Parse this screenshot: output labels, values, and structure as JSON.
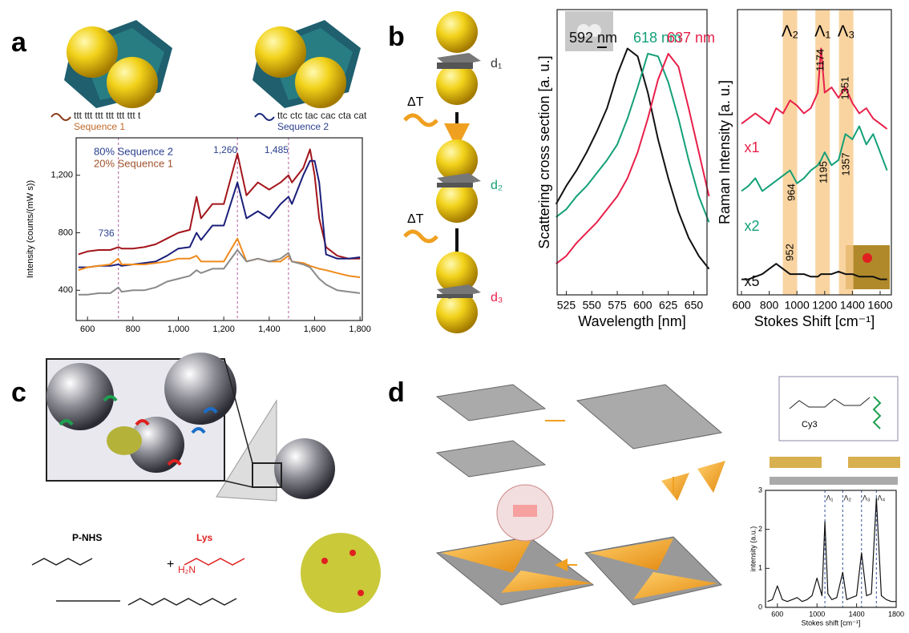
{
  "figure": {
    "panels": [
      "a",
      "b",
      "c",
      "d"
    ],
    "a": {
      "strand1": "ttt ttt ttt ttt ttt ttt t",
      "label1": "Sequence 1",
      "strand2": "ttc ctc tac cac cta cat",
      "label2": "Sequence 2"
    },
    "b": {
      "gaps": [
        "d₁",
        "d₂",
        "d₃"
      ],
      "heat": [
        "ΔT",
        "ΔT"
      ]
    },
    "c": {
      "reagent1": "P-NHS",
      "reagent2": "Lys",
      "plus": "+",
      "amine": "H₂N"
    },
    "d": {
      "dye": "Cy3"
    }
  },
  "chart_data": [
    {
      "type": "line",
      "ylabel": "Intensity (counts/(mW s))",
      "x": [
        560,
        600,
        650,
        700,
        736,
        750,
        800,
        850,
        900,
        950,
        1000,
        1050,
        1080,
        1100,
        1150,
        1200,
        1260,
        1300,
        1350,
        1400,
        1450,
        1485,
        1500,
        1550,
        1580,
        1600,
        1620,
        1650,
        1700,
        1750,
        1800
      ],
      "series": [
        {
          "color": "#a3151b",
          "values": [
            650,
            670,
            680,
            680,
            700,
            690,
            690,
            700,
            720,
            760,
            800,
            820,
            1050,
            900,
            1000,
            1000,
            1350,
            1060,
            1150,
            1100,
            1150,
            1200,
            1150,
            1250,
            1380,
            1200,
            900,
            700,
            640,
            620,
            620
          ]
        },
        {
          "color": "#1b1f7a",
          "values": [
            560,
            560,
            570,
            570,
            580,
            570,
            580,
            590,
            600,
            640,
            690,
            700,
            800,
            750,
            850,
            850,
            1150,
            900,
            950,
            900,
            1000,
            1050,
            1000,
            1200,
            1300,
            1300,
            1150,
            650,
            620,
            620,
            630
          ]
        },
        {
          "color": "#f08a1c",
          "values": [
            540,
            560,
            570,
            580,
            620,
            580,
            580,
            580,
            590,
            600,
            620,
            620,
            640,
            600,
            600,
            600,
            760,
            600,
            620,
            600,
            600,
            640,
            600,
            590,
            570,
            560,
            550,
            540,
            520,
            500,
            490
          ]
        },
        {
          "color": "#8a8a8a",
          "values": [
            370,
            370,
            380,
            380,
            420,
            390,
            400,
            400,
            420,
            460,
            480,
            500,
            540,
            520,
            550,
            550,
            680,
            600,
            620,
            600,
            620,
            660,
            600,
            580,
            560,
            520,
            480,
            440,
            400,
            390,
            380
          ]
        }
      ],
      "annotations": [
        {
          "text": "80% Sequence 2",
          "color": "#2a3f8f"
        },
        {
          "text": "20% Sequence 1",
          "color": "#a0522d"
        }
      ],
      "markers": [
        736,
        {
          "value": 1260,
          "label": "1,260"
        },
        {
          "value": 1485,
          "label": "1,485"
        }
      ],
      "xlim": [
        550,
        1810
      ],
      "ylim": [
        190,
        1460
      ],
      "xticks": [
        600,
        800,
        {
          "value": 1000,
          "label": "1,000"
        },
        {
          "value": 1200,
          "label": "1,200"
        },
        {
          "value": 1400,
          "label": "1,400"
        },
        {
          "value": 1600,
          "label": "1,600"
        },
        {
          "value": 1800,
          "label": "1,800"
        }
      ],
      "yticks": [
        400,
        800,
        {
          "value": 1200,
          "label": "1,200"
        }
      ]
    },
    {
      "type": "line",
      "xlabel": "Wavelength [nm]",
      "ylabel": "Scattering cross section [a. u.]",
      "x": [
        515,
        525,
        535,
        545,
        555,
        565,
        575,
        585,
        595,
        605,
        615,
        625,
        635,
        645,
        655,
        665
      ],
      "series": [
        {
          "name": "592 nm",
          "color": "#111111",
          "values": [
            0.35,
            0.42,
            0.48,
            0.55,
            0.63,
            0.72,
            0.85,
            0.95,
            0.92,
            0.78,
            0.6,
            0.45,
            0.32,
            0.22,
            0.15,
            0.1
          ]
        },
        {
          "name": "618 nm",
          "color": "#14a078",
          "values": [
            0.3,
            0.33,
            0.38,
            0.42,
            0.47,
            0.52,
            0.58,
            0.68,
            0.8,
            0.93,
            0.92,
            0.82,
            0.68,
            0.52,
            0.38,
            0.28
          ]
        },
        {
          "name": "637 nm",
          "color": "#e8204a",
          "values": [
            0.12,
            0.15,
            0.2,
            0.24,
            0.28,
            0.33,
            0.38,
            0.45,
            0.55,
            0.68,
            0.83,
            0.93,
            0.88,
            0.72,
            0.55,
            0.38
          ]
        }
      ],
      "xlim": [
        516,
        663
      ],
      "ylim": [
        0,
        1.1
      ],
      "xticks": [
        525,
        550,
        575,
        600,
        625,
        650
      ]
    },
    {
      "type": "line",
      "xlabel": "Stokes Shift [cm⁻¹]",
      "ylabel": "Raman Intensity [a. u.]",
      "x": [
        600,
        650,
        700,
        750,
        800,
        850,
        900,
        950,
        1000,
        1050,
        1100,
        1150,
        1174,
        1200,
        1250,
        1300,
        1350,
        1400,
        1450,
        1500,
        1550,
        1600,
        1650
      ],
      "series": [
        {
          "name": "x1",
          "color": "#e8204a",
          "values": [
            0.66,
            0.68,
            0.7,
            0.68,
            0.66,
            0.72,
            0.7,
            0.75,
            0.73,
            0.7,
            0.72,
            0.78,
            0.95,
            0.78,
            0.8,
            0.76,
            0.8,
            0.74,
            0.7,
            0.72,
            0.68,
            0.66,
            0.64
          ]
        },
        {
          "name": "x2",
          "color": "#14a078",
          "values": [
            0.4,
            0.42,
            0.45,
            0.4,
            0.42,
            0.44,
            0.46,
            0.48,
            0.43,
            0.45,
            0.48,
            0.5,
            0.52,
            0.55,
            0.5,
            0.52,
            0.62,
            0.6,
            0.65,
            0.58,
            0.62,
            0.55,
            0.48
          ]
        },
        {
          "name": "x5",
          "color": "#111111",
          "values": [
            0.06,
            0.06,
            0.07,
            0.08,
            0.1,
            0.12,
            0.1,
            0.08,
            0.08,
            0.08,
            0.07,
            0.07,
            0.08,
            0.08,
            0.08,
            0.09,
            0.08,
            0.08,
            0.07,
            0.07,
            0.07,
            0.06,
            0.06
          ]
        }
      ],
      "bands": [
        {
          "value": 950,
          "label": "Λ₂"
        },
        {
          "value": 1185,
          "label": "Λ₁"
        },
        {
          "value": 1355,
          "label": "Λ₃"
        }
      ],
      "peak_labels": [
        964,
        1174,
        1351,
        952,
        1195,
        1357
      ],
      "xlim": [
        571,
        1681
      ],
      "ylim": [
        0,
        1.1
      ],
      "xticks": [
        600,
        800,
        1000,
        1200,
        1400,
        1600
      ]
    },
    {
      "type": "line",
      "xlabel": "Stokes shift [cm⁻¹]",
      "ylabel": "intensity (a.u.)",
      "x": [
        500,
        550,
        600,
        650,
        700,
        750,
        800,
        850,
        900,
        950,
        1000,
        1050,
        1080,
        1110,
        1150,
        1200,
        1260,
        1300,
        1350,
        1400,
        1450,
        1500,
        1550,
        1600,
        1650,
        1700,
        1750,
        1800
      ],
      "series": [
        {
          "color": "#111111",
          "values": [
            0.15,
            0.2,
            0.55,
            0.2,
            0.15,
            0.2,
            0.25,
            0.15,
            0.2,
            0.3,
            0.75,
            0.3,
            2.2,
            0.35,
            0.2,
            0.25,
            0.9,
            0.2,
            0.25,
            0.3,
            1.4,
            0.3,
            0.35,
            2.8,
            0.3,
            0.2,
            0.15,
            0.15
          ]
        }
      ],
      "markers": [
        {
          "value": 1080,
          "label": "Λ₁"
        },
        {
          "value": 1260,
          "label": "Λ₂"
        },
        {
          "value": 1450,
          "label": "Λ₃"
        },
        {
          "value": 1600,
          "label": "Λ₄"
        }
      ],
      "xlim": [
        480,
        1800
      ],
      "ylim": [
        0,
        3
      ],
      "xticks": [
        600,
        1000,
        1400,
        1800
      ],
      "yticks": [
        0,
        1,
        2,
        3
      ]
    }
  ]
}
